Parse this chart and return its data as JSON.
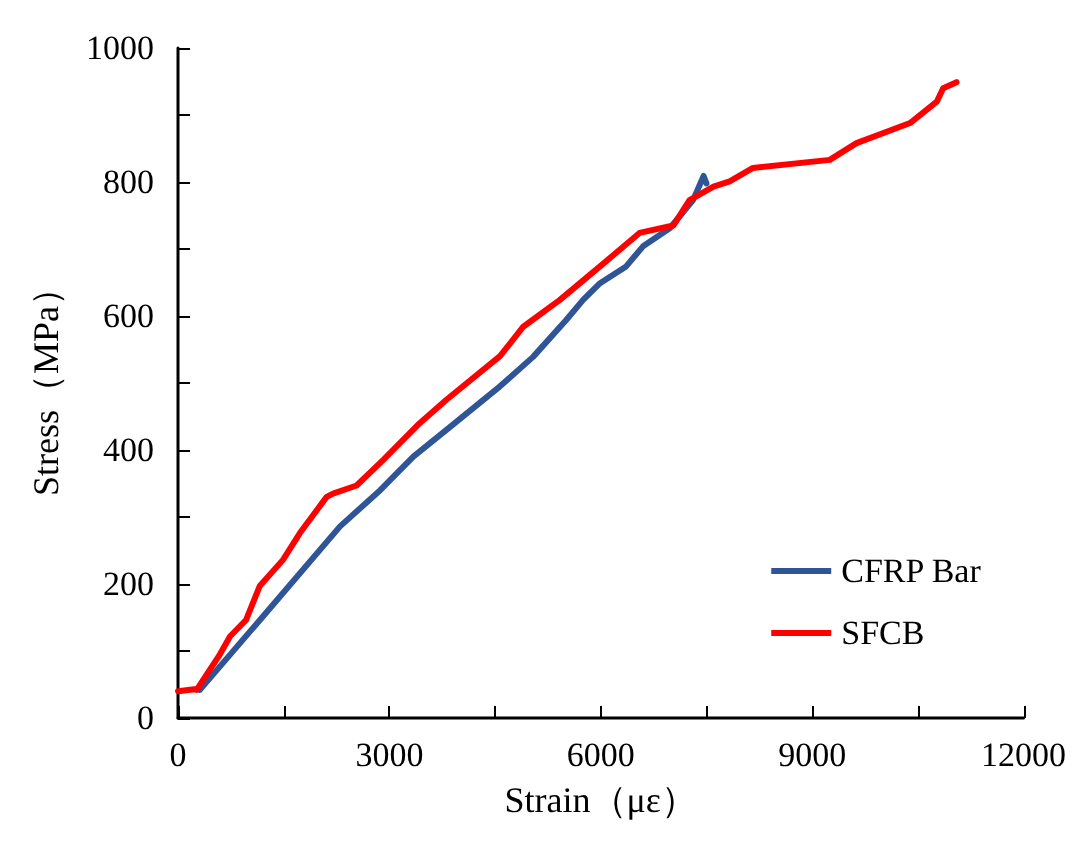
{
  "chart_data": {
    "type": "line",
    "xlabel": "Strain（με）",
    "ylabel": "Stress（MPa）",
    "xlim": [
      0,
      12000
    ],
    "xticks": [
      0,
      {
        "value": 1500,
        "label": null
      },
      3000,
      {
        "value": 4500,
        "label": null
      },
      6000,
      {
        "value": 7500,
        "label": null
      },
      9000,
      {
        "value": 10500,
        "label": null
      },
      12000
    ],
    "ylim": [
      0,
      1000
    ],
    "yticks": [
      0,
      {
        "value": 100,
        "label": null
      },
      200,
      {
        "value": 300,
        "label": null
      },
      400,
      {
        "value": 500,
        "label": null
      },
      600,
      {
        "value": 700,
        "label": null
      },
      800,
      {
        "value": 900,
        "label": null
      },
      1000
    ],
    "grid": false,
    "legend": "bottom right",
    "marker": "none",
    "line_style": "solid",
    "series": [
      {
        "name": "CFRP Bar",
        "color": "#2f5597",
        "x": [
          310,
          1160,
          2300,
          2870,
          3340,
          3810,
          4570,
          5040,
          5510,
          5750,
          5990,
          6360,
          6600,
          6980,
          7310,
          7460,
          7500
        ],
        "values": [
          42,
          146,
          286,
          340,
          390,
          430,
          495,
          539,
          594,
          624,
          649,
          674,
          704,
          731,
          773,
          809,
          798
        ]
      },
      {
        "name": "SFCB",
        "color": "#ff0000",
        "x": [
          0,
          230,
          265,
          595,
          740,
          965,
          1160,
          1490,
          1730,
          2110,
          2200,
          2535,
          2910,
          3430,
          3810,
          4570,
          4900,
          5420,
          5990,
          6550,
          7030,
          7260,
          7600,
          7830,
          8160,
          9250,
          9630,
          10390,
          10770,
          10860,
          11050
        ],
        "values": [
          40,
          43,
          42,
          95,
          122,
          146,
          197,
          236,
          276,
          330,
          335,
          347,
          385,
          440,
          475,
          540,
          584,
          624,
          674,
          724,
          735,
          773,
          793,
          801,
          821,
          833,
          858,
          888,
          920,
          940,
          949
        ]
      }
    ]
  }
}
